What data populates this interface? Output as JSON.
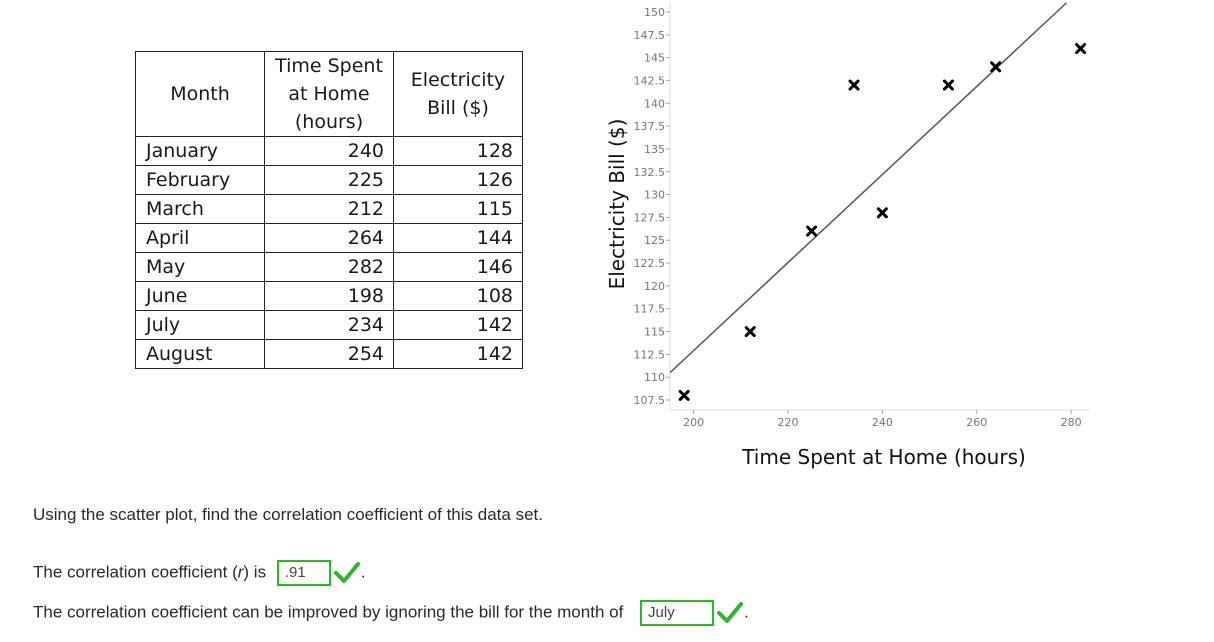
{
  "table": {
    "headers": [
      "Month",
      "Time Spent at Home (hours)",
      "Electricity Bill ($)"
    ],
    "header_lines": [
      [
        "Month"
      ],
      [
        "Time Spent",
        "at Home",
        "(hours)"
      ],
      [
        "Electricity",
        "Bill ($)"
      ]
    ],
    "rows": [
      {
        "month": "January",
        "time": "240",
        "bill": "128"
      },
      {
        "month": "February",
        "time": "225",
        "bill": "126"
      },
      {
        "month": "March",
        "time": "212",
        "bill": "115"
      },
      {
        "month": "April",
        "time": "264",
        "bill": "144"
      },
      {
        "month": "May",
        "time": "282",
        "bill": "146"
      },
      {
        "month": "June",
        "time": "198",
        "bill": "108"
      },
      {
        "month": "July",
        "time": "234",
        "bill": "142"
      },
      {
        "month": "August",
        "time": "254",
        "bill": "142"
      }
    ]
  },
  "chart_data": {
    "type": "scatter",
    "xlabel": "Time Spent at Home (hours)",
    "ylabel": "Electricity Bill ($)",
    "xlim": [
      195,
      284
    ],
    "ylim": [
      107.5,
      150
    ],
    "xticks": [
      200,
      220,
      240,
      260,
      280
    ],
    "yticks": [
      107.5,
      110,
      112.5,
      115,
      117.5,
      120,
      122.5,
      125,
      127.5,
      130,
      132.5,
      135,
      137.5,
      140,
      142.5,
      145,
      147.5,
      150
    ],
    "ytick_labels": [
      "107.5",
      "110",
      "112.5",
      "115",
      "117.5",
      "120",
      "122.5",
      "125",
      "127.5",
      "130",
      "132.5",
      "135",
      "137.5",
      "140",
      "142.5",
      "145",
      "147.5",
      "150"
    ],
    "points": [
      {
        "x": 240,
        "y": 128
      },
      {
        "x": 225,
        "y": 126
      },
      {
        "x": 212,
        "y": 115
      },
      {
        "x": 264,
        "y": 144
      },
      {
        "x": 282,
        "y": 146
      },
      {
        "x": 198,
        "y": 108
      },
      {
        "x": 234,
        "y": 142
      },
      {
        "x": 254,
        "y": 142
      }
    ],
    "trendline": {
      "x": [
        195,
        279
      ],
      "y": [
        110.5,
        151
      ]
    },
    "grid": false,
    "marker": "x",
    "colors": {
      "marker": "#000000",
      "trendline": "#555555",
      "axis": "#dddddd"
    }
  },
  "question": {
    "prompt": "Using the scatter plot, find the correlation coefficient of this data set.",
    "line1_prefix": "The correlation coefficient (",
    "line1_var": "r",
    "line1_mid": ") is",
    "answer1": ".91",
    "line1_suffix": ".",
    "line2_prefix": "The correlation coefficient can be improved by ignoring the bill for the month of",
    "answer2": "July",
    "line2_suffix": ".",
    "check_color": "#2db52d",
    "check_icon": "checkmark-icon"
  }
}
